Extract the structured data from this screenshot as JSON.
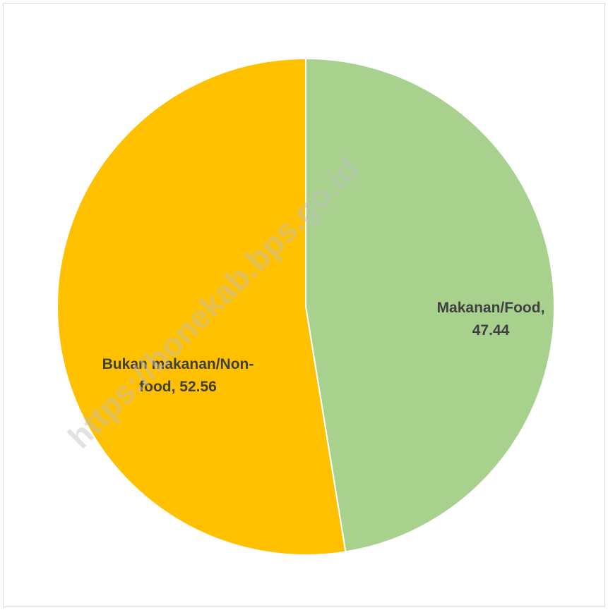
{
  "chart_data": {
    "type": "pie",
    "values": [
      47.44,
      52.56
    ],
    "colors": [
      "#a9d18e",
      "#ffc000"
    ],
    "data_labels": [
      [
        "Makanan/Food,",
        "47.44"
      ],
      [
        "Bukan makanan/Non-",
        "food, 52.56"
      ]
    ],
    "watermark": "https://bonekab.bps.go.id"
  }
}
